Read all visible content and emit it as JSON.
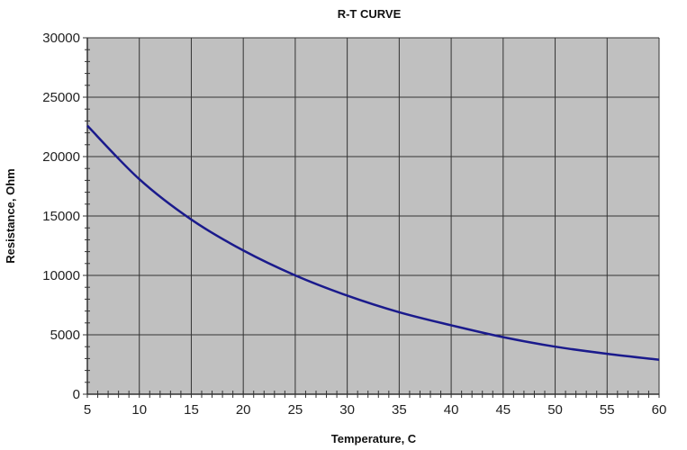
{
  "chart_data": {
    "type": "line",
    "title": "R-T CURVE",
    "xlabel": "Temperature, C",
    "ylabel": "Resistance, Ohm",
    "xlim": [
      5,
      60
    ],
    "ylim": [
      0,
      30000
    ],
    "xticks": [
      5,
      10,
      15,
      20,
      25,
      30,
      35,
      40,
      45,
      50,
      55,
      60
    ],
    "yticks": [
      0,
      5000,
      10000,
      15000,
      20000,
      25000,
      30000
    ],
    "grid": true,
    "legend": "none",
    "series": [
      {
        "name": "R-T",
        "color": "#1a1a8c",
        "x": [
          5,
          10,
          15,
          20,
          25,
          30,
          35,
          40,
          45,
          50,
          55,
          60
        ],
        "y": [
          22600,
          18100,
          14700,
          12100,
          10000,
          8300,
          6900,
          5800,
          4800,
          4000,
          3400,
          2900
        ]
      }
    ],
    "plot_bg": "#c0c0c0"
  }
}
